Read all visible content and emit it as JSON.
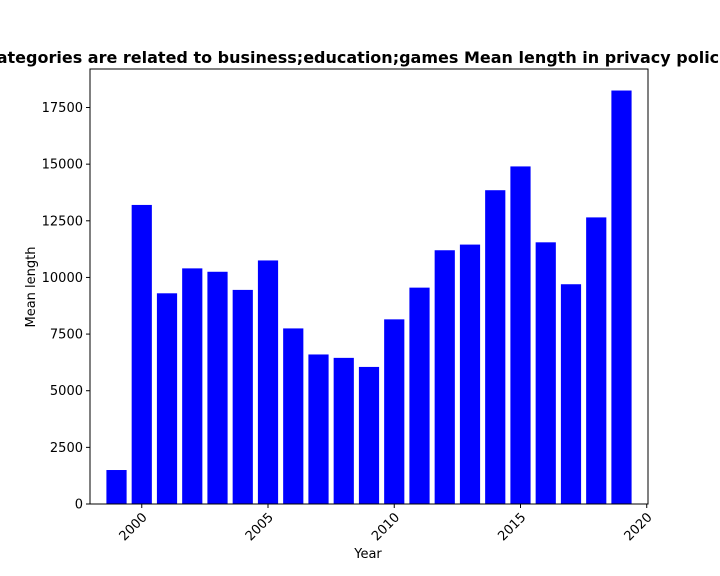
{
  "chart_data": {
    "type": "bar",
    "title": "Categories are related to business;education;games Mean length in privacy policies",
    "xlabel": "Year",
    "ylabel": "Mean length",
    "x": [
      1999,
      2000,
      2001,
      2002,
      2003,
      2004,
      2005,
      2006,
      2007,
      2008,
      2009,
      2010,
      2011,
      2012,
      2013,
      2014,
      2015,
      2016,
      2017,
      2018,
      2019
    ],
    "values": [
      1500,
      13200,
      9300,
      10400,
      10250,
      9450,
      10750,
      7750,
      6600,
      6450,
      6050,
      8150,
      9550,
      11200,
      11450,
      13850,
      14900,
      11550,
      9700,
      12650,
      18250
    ],
    "xlim": [
      1997.95,
      2020.05
    ],
    "ylim": [
      0,
      19200
    ],
    "xticks": [
      2000,
      2005,
      2010,
      2015,
      2020
    ],
    "yticks": [
      0,
      2500,
      5000,
      7500,
      10000,
      12500,
      15000,
      17500
    ],
    "bar_color": "#0000ff",
    "grid": false,
    "legend": "none",
    "xtick_rotation": 45
  }
}
